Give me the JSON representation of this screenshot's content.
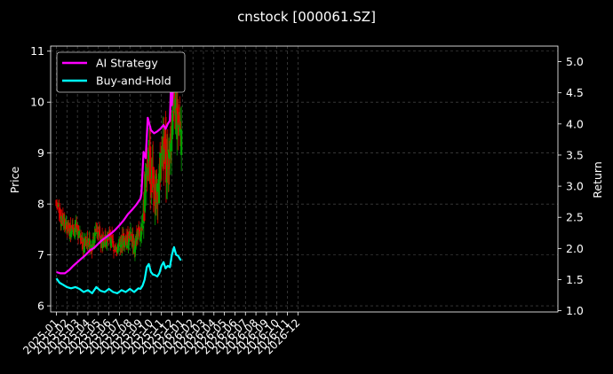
{
  "chart_data": {
    "type": "line",
    "title": "cnstock [000061.SZ]",
    "ylabel_left": "Price",
    "ylabel_right": "Return",
    "ylim_left": [
      5.88,
      11.1
    ],
    "ylim_right": [
      0.98,
      5.25
    ],
    "left_ticks": [
      "6",
      "7",
      "8",
      "9",
      "10",
      "11"
    ],
    "right_ticks": [
      "1.0",
      "1.5",
      "2.0",
      "2.5",
      "3.0",
      "3.5",
      "4.0",
      "4.5",
      "5.0"
    ],
    "x_ticks": [
      "2025-01",
      "2025-02",
      "2025-03",
      "2025-04",
      "2025-05",
      "2025-06",
      "2025-07",
      "2025-08",
      "2025-09",
      "2025-10",
      "2025-11",
      "2025-12",
      "2026-01",
      "2026-02",
      "2026-03",
      "2026-04",
      "2026-05",
      "2026-06",
      "2026-07",
      "2026-08",
      "2026-09",
      "2026-10",
      "2026-11",
      "2026-12"
    ],
    "grid": true,
    "legend_position": "top-left",
    "colors": {
      "ai": "#ff00ff",
      "bh": "#00ffff",
      "up": "#00a000",
      "down": "#e00000",
      "grid": "#555555",
      "axis": "#ffffff"
    },
    "series": [
      {
        "name": "AI Strategy",
        "axis": "right",
        "x": [
          0,
          0.4,
          0.8,
          1.2,
          1.6,
          2.0,
          2.4,
          2.8,
          3.2,
          3.6,
          4.0,
          4.4,
          4.8,
          5.2,
          5.6,
          6.0,
          6.4,
          6.8,
          7.2,
          7.6,
          7.8,
          8.0,
          8.1,
          8.3,
          8.5,
          8.7,
          9.0,
          9.3,
          9.6,
          9.9,
          10.2,
          10.4,
          10.6,
          10.8,
          10.9,
          11.0,
          11.2,
          11.4,
          11.6,
          11.8,
          11.85,
          11.9
        ],
        "values": [
          1.62,
          1.6,
          1.6,
          1.65,
          1.72,
          1.78,
          1.84,
          1.9,
          1.97,
          2.01,
          2.08,
          2.14,
          2.19,
          2.24,
          2.3,
          2.37,
          2.45,
          2.55,
          2.62,
          2.7,
          2.75,
          2.8,
          2.88,
          3.55,
          3.45,
          4.1,
          3.9,
          3.85,
          3.88,
          3.92,
          3.98,
          3.92,
          4.0,
          4.05,
          4.55,
          4.3,
          4.85,
          5.05,
          4.95,
          5.02,
          4.9,
          4.95
        ]
      },
      {
        "name": "Buy-and-Hold",
        "axis": "right",
        "x": [
          0,
          0.3,
          0.6,
          1.0,
          1.4,
          1.8,
          2.2,
          2.6,
          3.0,
          3.4,
          3.8,
          4.2,
          4.6,
          5.0,
          5.4,
          5.8,
          6.2,
          6.6,
          7.0,
          7.4,
          7.8,
          8.0,
          8.2,
          8.4,
          8.6,
          8.8,
          9.0,
          9.2,
          9.4,
          9.6,
          9.8,
          10.0,
          10.2,
          10.4,
          10.6,
          10.8,
          11.0,
          11.2,
          11.4,
          11.6,
          11.8,
          11.9
        ],
        "values": [
          1.52,
          1.45,
          1.42,
          1.38,
          1.36,
          1.38,
          1.35,
          1.3,
          1.33,
          1.28,
          1.38,
          1.32,
          1.3,
          1.35,
          1.3,
          1.28,
          1.33,
          1.3,
          1.35,
          1.3,
          1.36,
          1.35,
          1.4,
          1.5,
          1.7,
          1.75,
          1.62,
          1.58,
          1.57,
          1.55,
          1.6,
          1.72,
          1.78,
          1.68,
          1.72,
          1.7,
          1.9,
          2.02,
          1.9,
          1.88,
          1.82,
          1.82
        ]
      }
    ],
    "candles_seed": 61
  }
}
